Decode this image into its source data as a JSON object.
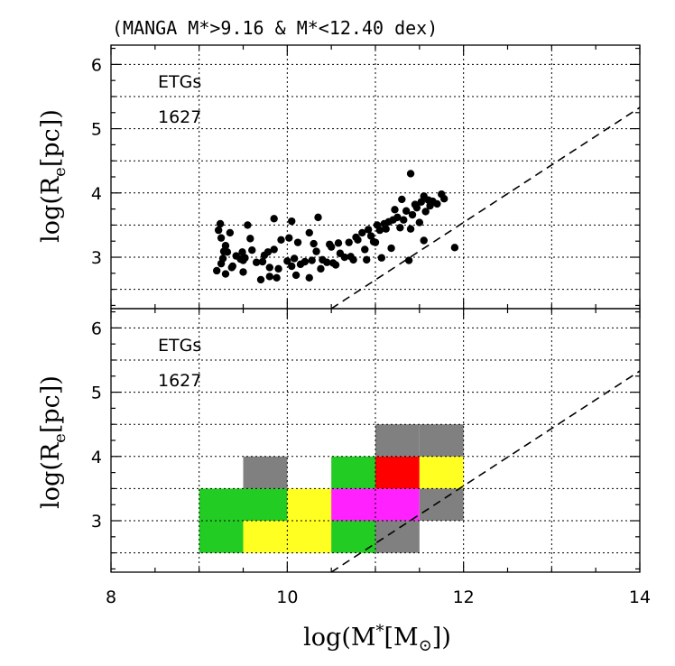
{
  "chart_data": [
    {
      "type": "scatter",
      "title": "(MANGA M*>9.16 & M*<12.40 dex)",
      "panel_label": "ETGs",
      "count": "1627",
      "xlabel": "log(M*[M⊙])",
      "ylabel": "log(Re[pc])",
      "xlim": [
        8,
        14
      ],
      "ylim": [
        2.2,
        6.3
      ],
      "x_ticks": [
        8,
        10,
        12,
        14
      ],
      "y_ticks": [
        3,
        4,
        5,
        6
      ],
      "x_tick_labels": [
        "",
        "",
        "",
        ""
      ],
      "y_tick_labels": [
        "3",
        "4",
        "5",
        "6"
      ],
      "grid": true,
      "series": [
        {
          "name": "ETGs",
          "color": "#000000",
          "points": [
            [
              9.2,
              2.79
            ],
            [
              9.25,
              2.9
            ],
            [
              9.25,
              3.3
            ],
            [
              9.22,
              3.42
            ],
            [
              9.24,
              3.52
            ],
            [
              9.27,
              2.98
            ],
            [
              9.28,
              3.09
            ],
            [
              9.3,
              3.18
            ],
            [
              9.3,
              2.74
            ],
            [
              9.32,
              3.08
            ],
            [
              9.35,
              3.38
            ],
            [
              9.37,
              2.84
            ],
            [
              9.38,
              2.86
            ],
            [
              9.42,
              3.02
            ],
            [
              9.47,
              2.97
            ],
            [
              9.49,
              3.08
            ],
            [
              9.5,
              2.95
            ],
            [
              9.5,
              2.77
            ],
            [
              9.52,
              2.99
            ],
            [
              9.55,
              3.5
            ],
            [
              9.58,
              3.29
            ],
            [
              9.6,
              3.11
            ],
            [
              9.65,
              2.92
            ],
            [
              9.7,
              2.65
            ],
            [
              9.72,
              2.93
            ],
            [
              9.74,
              3.03
            ],
            [
              9.78,
              3.08
            ],
            [
              9.8,
              2.84
            ],
            [
              9.8,
              2.7
            ],
            [
              9.85,
              3.12
            ],
            [
              9.85,
              3.6
            ],
            [
              9.88,
              2.68
            ],
            [
              9.9,
              2.82
            ],
            [
              9.93,
              3.27
            ],
            [
              10.0,
              2.94
            ],
            [
              10.02,
              3.3
            ],
            [
              10.05,
              2.86
            ],
            [
              10.05,
              3.56
            ],
            [
              10.08,
              2.98
            ],
            [
              10.1,
              2.72
            ],
            [
              10.12,
              3.23
            ],
            [
              10.15,
              2.89
            ],
            [
              10.2,
              2.93
            ],
            [
              10.25,
              3.38
            ],
            [
              10.25,
              2.68
            ],
            [
              10.28,
              2.95
            ],
            [
              10.3,
              3.21
            ],
            [
              10.33,
              3.09
            ],
            [
              10.35,
              3.62
            ],
            [
              10.38,
              2.82
            ],
            [
              10.4,
              2.96
            ],
            [
              10.45,
              2.92
            ],
            [
              10.48,
              3.2
            ],
            [
              10.5,
              3.16
            ],
            [
              10.52,
              2.91
            ],
            [
              10.55,
              2.88
            ],
            [
              10.58,
              3.22
            ],
            [
              10.6,
              3.06
            ],
            [
              10.65,
              3.0
            ],
            [
              10.7,
              3.23
            ],
            [
              10.72,
              3.01
            ],
            [
              10.75,
              2.96
            ],
            [
              10.78,
              3.31
            ],
            [
              10.8,
              3.27
            ],
            [
              10.85,
              3.38
            ],
            [
              10.88,
              3.12
            ],
            [
              10.9,
              2.96
            ],
            [
              10.92,
              3.43
            ],
            [
              10.95,
              3.33
            ],
            [
              10.98,
              3.24
            ],
            [
              11.0,
              3.23
            ],
            [
              11.02,
              3.5
            ],
            [
              11.05,
              3.42
            ],
            [
              11.07,
              2.99
            ],
            [
              11.1,
              3.52
            ],
            [
              11.12,
              3.44
            ],
            [
              11.15,
              3.55
            ],
            [
              11.18,
              3.14
            ],
            [
              11.2,
              3.58
            ],
            [
              11.22,
              3.74
            ],
            [
              11.25,
              3.62
            ],
            [
              11.28,
              3.46
            ],
            [
              11.3,
              3.9
            ],
            [
              11.32,
              3.58
            ],
            [
              11.35,
              3.72
            ],
            [
              11.38,
              2.95
            ],
            [
              11.4,
              3.44
            ],
            [
              11.42,
              3.66
            ],
            [
              11.45,
              3.82
            ],
            [
              11.47,
              3.77
            ],
            [
              11.5,
              3.54
            ],
            [
              11.52,
              3.86
            ],
            [
              11.55,
              3.95
            ],
            [
              11.57,
              3.71
            ],
            [
              11.6,
              3.89
            ],
            [
              11.62,
              3.8
            ],
            [
              11.65,
              3.87
            ],
            [
              11.7,
              3.83
            ],
            [
              11.75,
              3.98
            ],
            [
              11.78,
              3.91
            ],
            [
              11.9,
              3.15
            ],
            [
              11.4,
              4.3
            ],
            [
              11.55,
              3.26
            ]
          ]
        }
      ],
      "reference_line": {
        "style": "dashed",
        "x": [
          10.5,
          14.0
        ],
        "y": [
          2.2,
          5.33
        ]
      }
    },
    {
      "type": "heatmap",
      "panel_label": "ETGs",
      "count": "1627",
      "xlabel": "log(M*[M⊙])",
      "ylabel": "log(Re[pc])",
      "xlim": [
        8,
        14
      ],
      "ylim": [
        2.2,
        6.3
      ],
      "x_ticks": [
        8,
        10,
        12,
        14
      ],
      "y_ticks": [
        3,
        4,
        5,
        6
      ],
      "x_tick_labels": [
        "8",
        "10",
        "12",
        "14"
      ],
      "y_tick_labels": [
        "3",
        "4",
        "5",
        "6"
      ],
      "grid": true,
      "bin_size": 0.5,
      "cells": [
        {
          "x": 9.0,
          "y": 2.5,
          "color": "#22cc22"
        },
        {
          "x": 9.0,
          "y": 3.0,
          "color": "#22cc22"
        },
        {
          "x": 9.5,
          "y": 2.5,
          "color": "#ffff22"
        },
        {
          "x": 9.5,
          "y": 3.0,
          "color": "#22cc22"
        },
        {
          "x": 9.5,
          "y": 3.5,
          "color": "#808080"
        },
        {
          "x": 10.0,
          "y": 2.5,
          "color": "#ffff22"
        },
        {
          "x": 10.0,
          "y": 3.0,
          "color": "#ffff22"
        },
        {
          "x": 10.5,
          "y": 2.5,
          "color": "#22cc22"
        },
        {
          "x": 10.5,
          "y": 3.0,
          "color": "#ff22ff"
        },
        {
          "x": 10.5,
          "y": 3.5,
          "color": "#22cc22"
        },
        {
          "x": 11.0,
          "y": 2.5,
          "color": "#808080"
        },
        {
          "x": 11.0,
          "y": 3.0,
          "color": "#ff22ff"
        },
        {
          "x": 11.0,
          "y": 3.5,
          "color": "#ff0000"
        },
        {
          "x": 11.0,
          "y": 4.0,
          "color": "#808080"
        },
        {
          "x": 11.5,
          "y": 3.0,
          "color": "#808080"
        },
        {
          "x": 11.5,
          "y": 3.5,
          "color": "#ffff22"
        },
        {
          "x": 11.5,
          "y": 4.0,
          "color": "#808080"
        }
      ],
      "reference_line": {
        "style": "dashed",
        "x": [
          10.5,
          14.0
        ],
        "y": [
          2.2,
          5.33
        ]
      }
    }
  ]
}
